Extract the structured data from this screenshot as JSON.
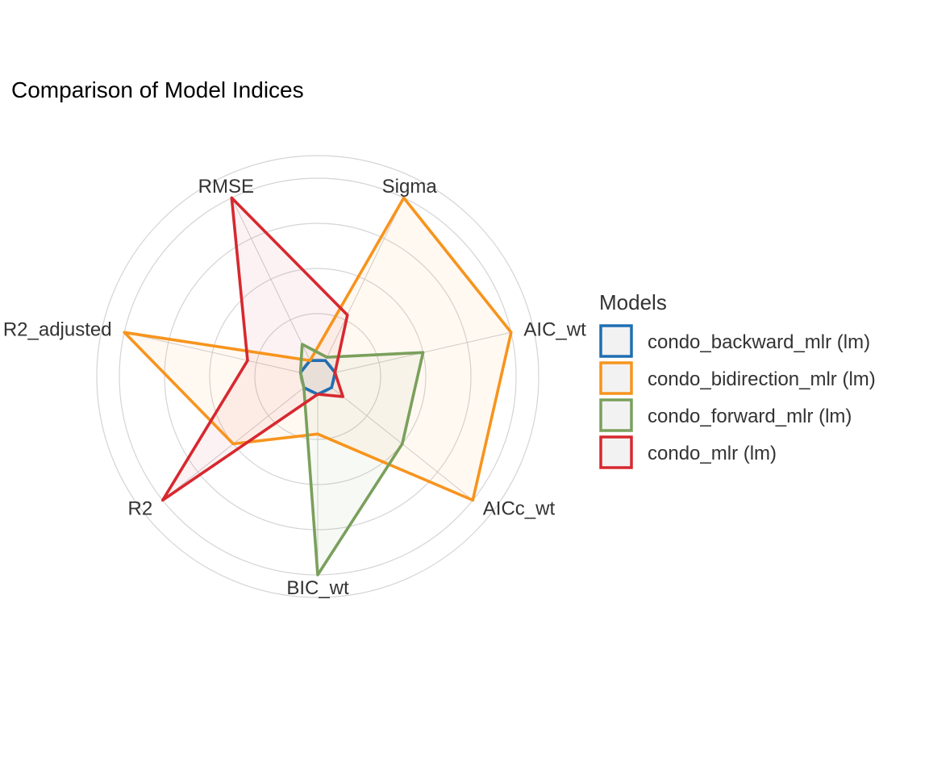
{
  "chart_data": {
    "type": "radar",
    "title": "Comparison of Model Indices",
    "axes": [
      "Sigma",
      "AIC_wt",
      "AICc_wt",
      "BIC_wt",
      "R2",
      "R2_adjusted",
      "RMSE"
    ],
    "range": [
      0,
      1
    ],
    "grid": true,
    "legend": {
      "title": "Models",
      "position": "right"
    },
    "series": [
      {
        "name": "condo_backward_mlr (lm)",
        "color": "#1f6fb2",
        "values": [
          0.0,
          0.0,
          0.0,
          0.0,
          0.0,
          0.0,
          0.0
        ]
      },
      {
        "name": "condo_bidirection_mlr (lm)",
        "color": "#f7941d",
        "values": [
          1.0,
          1.0,
          1.0,
          0.22,
          0.5,
          1.0,
          0.0
        ]
      },
      {
        "name": "condo_forward_mlr (lm)",
        "color": "#7aa05c",
        "values": [
          0.02,
          0.5,
          0.5,
          1.0,
          0.0,
          0.0,
          0.1
        ]
      },
      {
        "name": "condo_mlr (lm)",
        "color": "#d7282f",
        "values": [
          0.28,
          0.0,
          0.08,
          0.0,
          1.0,
          0.3,
          1.0
        ]
      }
    ]
  }
}
